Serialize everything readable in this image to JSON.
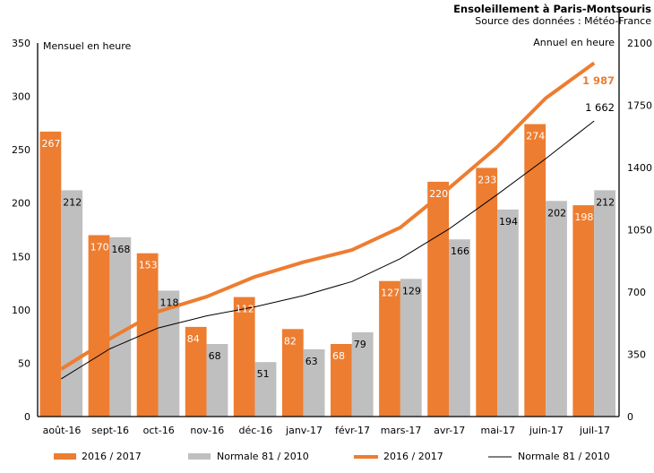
{
  "chart_data": {
    "type": "bar",
    "title": "Ensoleillement à Paris-Montsouris",
    "subtitle": "Source des données : Météo-France",
    "ylabel_left": "Mensuel en heure",
    "ylabel_right": "Annuel en heure",
    "categories": [
      "août-16",
      "sept-16",
      "oct-16",
      "nov-16",
      "déc-16",
      "janv-17",
      "févr-17",
      "mars-17",
      "avr-17",
      "mai-17",
      "juin-17",
      "juil-17"
    ],
    "ylim_left": [
      0,
      350
    ],
    "yticks_left": [
      0,
      50,
      100,
      150,
      200,
      250,
      300,
      350
    ],
    "ylim_right": [
      0,
      2100
    ],
    "yticks_right": [
      0,
      350,
      700,
      1050,
      1400,
      1750,
      2100
    ],
    "grid": false,
    "legend_position": "bottom",
    "series": [
      {
        "name": "2016 / 2017",
        "kind": "bar",
        "axis": "left",
        "color": "#ED7D31",
        "values": [
          267,
          170,
          153,
          84,
          112,
          82,
          68,
          127,
          220,
          233,
          274,
          198
        ],
        "labels": [
          "267",
          "170",
          "153",
          "84",
          "112",
          "82",
          "68",
          "127",
          "220",
          "233",
          "274",
          "198"
        ]
      },
      {
        "name": "Normale 81 / 2010",
        "kind": "bar",
        "axis": "left",
        "color": "#BFBFBF",
        "values": [
          212,
          168,
          118,
          68,
          51,
          63,
          79,
          129,
          166,
          194,
          202,
          212
        ],
        "labels": [
          "212",
          "168",
          "118",
          "68",
          "51",
          "63",
          "79",
          "129",
          "166",
          "194",
          "202",
          "212"
        ]
      },
      {
        "name": "2016 / 2017",
        "kind": "line",
        "axis": "right",
        "color": "#ED7D31",
        "values": [
          267,
          437,
          590,
          674,
          786,
          868,
          936,
          1063,
          1283,
          1516,
          1790,
          1987
        ],
        "end_label": "1 987"
      },
      {
        "name": "Normale 81 / 2010",
        "kind": "line",
        "axis": "right",
        "color": "#000000",
        "values": [
          212,
          380,
          498,
          566,
          617,
          680,
          759,
          888,
          1054,
          1248,
          1450,
          1662
        ],
        "end_label": "1 662"
      }
    ]
  }
}
